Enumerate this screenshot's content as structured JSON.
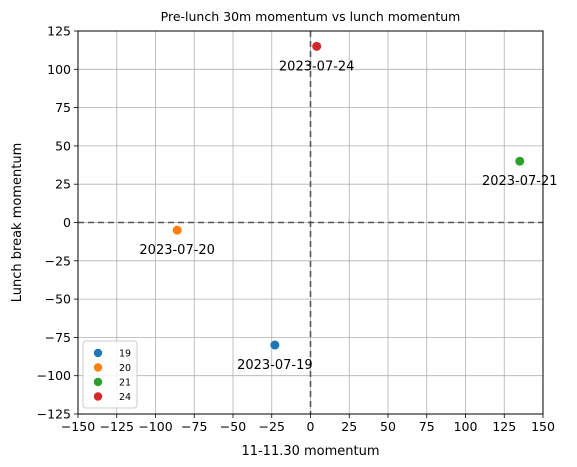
{
  "chart_data": {
    "type": "scatter",
    "title": "Pre-lunch 30m momentum vs lunch momentum",
    "xlabel": "11-11.30 momentum",
    "ylabel": "Lunch break momentum",
    "xlim": [
      -150,
      150
    ],
    "ylim": [
      -125,
      125
    ],
    "xticks": [
      -150,
      -125,
      -100,
      -75,
      -50,
      -25,
      0,
      25,
      50,
      75,
      100,
      125,
      150
    ],
    "yticks": [
      -125,
      -100,
      -75,
      -50,
      -25,
      0,
      25,
      50,
      75,
      100,
      125
    ],
    "grid": true,
    "reference_lines": {
      "x": 0,
      "y": 0,
      "style": "dashed",
      "color": "#555555"
    },
    "legend_position": "lower-left",
    "series": [
      {
        "name": "19",
        "color": "#1f77b4",
        "x": -23,
        "y": -80,
        "annotation": "2023-07-19"
      },
      {
        "name": "20",
        "color": "#ff7f0e",
        "x": -86,
        "y": -5,
        "annotation": "2023-07-20"
      },
      {
        "name": "21",
        "color": "#2ca02c",
        "x": 135,
        "y": 40,
        "annotation": "2023-07-21"
      },
      {
        "name": "24",
        "color": "#d62728",
        "x": 4,
        "y": 115,
        "annotation": "2023-07-24"
      }
    ]
  }
}
